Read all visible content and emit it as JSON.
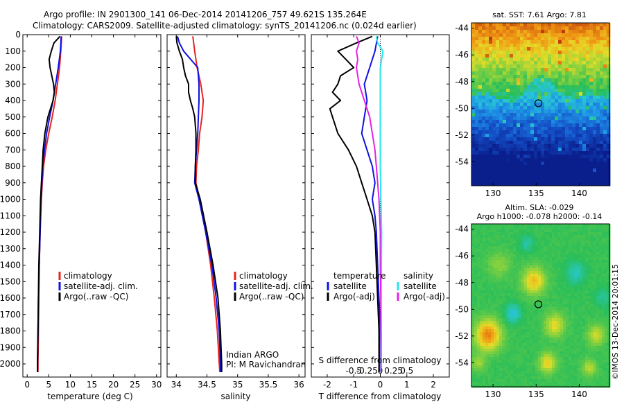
{
  "header": {
    "line1": "Argo profile: IN 2901300_141 06-Dec-2014 20141206_757 49.621S 135.264E",
    "line2": "Climatology: CARS2009. Satellite-adjusted climatology: synTS_20141206.nc (0.024d earlier)"
  },
  "colors": {
    "climatology": "#e8231e",
    "satellite": "#1010e0",
    "argo": "#000000",
    "sat_salinity": "#22e6ee",
    "argo_salinity": "#e620e6"
  },
  "chart_data": [
    {
      "type": "line",
      "id": "temperature",
      "xlabel": "temperature (deg C)",
      "ylabel": "",
      "xlim": [
        -1,
        31
      ],
      "ylim": [
        0,
        2080
      ],
      "xticks": [
        0,
        5,
        10,
        15,
        20,
        25,
        30
      ],
      "yticks": [
        0,
        100,
        200,
        300,
        400,
        500,
        600,
        700,
        800,
        900,
        1000,
        1100,
        1200,
        1300,
        1400,
        1500,
        1600,
        1700,
        1800,
        1900,
        2000
      ],
      "legend": [
        "climatology",
        "satellite-adj. clim.",
        "Argo(..raw -QC)"
      ],
      "series": [
        {
          "name": "climatology",
          "color": "#e8231e",
          "depth": [
            10,
            100,
            200,
            300,
            400,
            500,
            600,
            700,
            800,
            900,
            1000,
            1200,
            1400,
            1600,
            1800,
            2000,
            2050
          ],
          "values": [
            8.0,
            7.8,
            7.5,
            7.0,
            6.5,
            5.8,
            5.0,
            4.3,
            3.8,
            3.5,
            3.3,
            3.0,
            2.8,
            2.7,
            2.6,
            2.5,
            2.5
          ]
        },
        {
          "name": "satellite-adj. clim.",
          "color": "#1010e0",
          "depth": [
            10,
            100,
            200,
            300,
            400,
            500,
            600,
            700,
            800,
            900,
            1000,
            1200,
            1400,
            1600,
            1800,
            2000,
            2050
          ],
          "values": [
            7.9,
            7.7,
            7.2,
            6.6,
            6.0,
            5.2,
            4.5,
            4.0,
            3.6,
            3.4,
            3.2,
            3.0,
            2.8,
            2.6,
            2.5,
            2.4,
            2.4
          ]
        },
        {
          "name": "Argo(..raw -QC)",
          "color": "#000000",
          "depth": [
            10,
            50,
            100,
            150,
            200,
            250,
            300,
            350,
            400,
            450,
            500,
            600,
            700,
            800,
            900,
            1000,
            1200,
            1400,
            1600,
            1800,
            2000,
            2050
          ],
          "values": [
            7.6,
            6.2,
            5.6,
            5.1,
            5.3,
            5.7,
            6.1,
            6.3,
            6.0,
            5.4,
            4.8,
            4.1,
            3.7,
            3.5,
            3.3,
            3.1,
            2.9,
            2.7,
            2.6,
            2.5,
            2.4,
            2.4
          ]
        }
      ]
    },
    {
      "type": "line",
      "id": "salinity",
      "xlabel": "salinity",
      "ylabel": "",
      "xlim": [
        33.85,
        36.1
      ],
      "ylim": [
        0,
        2080
      ],
      "xticks": [
        34,
        34.5,
        35,
        35.5,
        36
      ],
      "legend": [
        "climatology",
        "satellite-adj. clim.",
        "Argo(..raw -QC)"
      ],
      "annotation": [
        "Indian ARGO",
        "PI: M Ravichandran"
      ],
      "series": [
        {
          "name": "climatology",
          "color": "#e8231e",
          "depth": [
            10,
            100,
            200,
            300,
            400,
            500,
            600,
            700,
            800,
            900,
            1000,
            1200,
            1400,
            1600,
            1800,
            2000,
            2050
          ],
          "values": [
            34.27,
            34.3,
            34.34,
            34.4,
            34.44,
            34.42,
            34.38,
            34.36,
            34.33,
            34.32,
            34.38,
            34.48,
            34.56,
            34.62,
            34.67,
            34.7,
            34.71
          ]
        },
        {
          "name": "satellite-adj. clim.",
          "color": "#1010e0",
          "depth": [
            10,
            50,
            100,
            200,
            300,
            400,
            500,
            600,
            700,
            800,
            900,
            1000,
            1200,
            1400,
            1600,
            1800,
            2000,
            2050
          ],
          "values": [
            34.02,
            34.05,
            34.12,
            34.35,
            34.37,
            34.37,
            34.36,
            34.35,
            34.33,
            34.31,
            34.3,
            34.37,
            34.48,
            34.58,
            34.65,
            34.7,
            34.72,
            34.72
          ]
        },
        {
          "name": "Argo(..raw -QC)",
          "color": "#000000",
          "depth": [
            10,
            50,
            100,
            150,
            200,
            250,
            300,
            350,
            400,
            450,
            500,
            600,
            700,
            800,
            900,
            1000,
            1200,
            1400,
            1600,
            1800,
            2000,
            2050
          ],
          "values": [
            34.0,
            34.01,
            34.05,
            34.1,
            34.12,
            34.15,
            34.2,
            34.2,
            34.23,
            34.27,
            34.3,
            34.32,
            34.32,
            34.31,
            34.31,
            34.39,
            34.5,
            34.6,
            34.68,
            34.72,
            34.74,
            34.74
          ]
        }
      ]
    },
    {
      "type": "line",
      "id": "difference",
      "xlabel": "T difference from climatology",
      "xlabel_top": "S difference from climatology",
      "xlim": [
        -2.6,
        2.6
      ],
      "ylim": [
        0,
        2080
      ],
      "xticks_T": [
        -2,
        -1,
        0,
        1,
        2
      ],
      "xticks_S": [
        -0.5,
        -0.25,
        0,
        0.25,
        0.5
      ],
      "legend_temperature": [
        "temperature",
        "satellite",
        "Argo(-adj)"
      ],
      "legend_salinity": [
        "salinity",
        "satellite",
        "Argo(-adj)"
      ],
      "series": [
        {
          "name": "satellite",
          "color": "#1010e0",
          "depth": [
            10,
            100,
            200,
            300,
            400,
            500,
            600,
            700,
            800,
            900,
            1000,
            1100,
            1200,
            1400,
            1600,
            1800,
            2000,
            2050
          ],
          "values": [
            -0.1,
            -0.2,
            -0.4,
            -0.6,
            -0.5,
            -0.6,
            -0.7,
            -0.5,
            -0.3,
            -0.2,
            -0.3,
            -0.2,
            -0.15,
            -0.1,
            -0.05,
            0,
            0,
            0
          ]
        },
        {
          "name": "Argo(-adj)",
          "color": "#000000",
          "depth": [
            10,
            50,
            100,
            150,
            200,
            250,
            300,
            350,
            400,
            450,
            500,
            600,
            700,
            800,
            900,
            1000,
            1100,
            1200,
            1400,
            1600,
            1800,
            2000,
            2050
          ],
          "values": [
            -0.3,
            -0.9,
            -1.6,
            -1.3,
            -1.0,
            -1.5,
            -1.6,
            -1.8,
            -1.5,
            -1.9,
            -1.8,
            -1.6,
            -1.2,
            -0.9,
            -0.7,
            -0.5,
            -0.3,
            -0.2,
            -0.15,
            -0.1,
            -0.05,
            -0.05,
            -0.05
          ]
        },
        {
          "name": "satellite",
          "color": "#22e6ee",
          "depth": [
            10,
            50,
            100,
            150,
            200,
            300,
            400,
            600,
            800,
            1000,
            1200,
            1400,
            1600,
            1800,
            2000,
            2050
          ],
          "values": [
            -0.15,
            -0.1,
            0.1,
            0.05,
            0.0,
            0.0,
            0.0,
            0.0,
            0.0,
            0.02,
            0.05,
            0.04,
            0.03,
            0.02,
            0.01,
            0.01
          ]
        },
        {
          "name": "Argo(-adj)",
          "color": "#e620e6",
          "depth": [
            10,
            50,
            100,
            150,
            200,
            300,
            400,
            500,
            600,
            700,
            800,
            900,
            1000,
            1200,
            1400,
            1600,
            1800,
            2000,
            2050
          ],
          "values": [
            -0.9,
            -0.8,
            -0.9,
            -0.85,
            -0.9,
            -0.8,
            -0.6,
            -0.4,
            -0.3,
            -0.2,
            -0.15,
            -0.1,
            -0.05,
            0.0,
            0.0,
            0.02,
            0.03,
            0.03,
            0.03
          ]
        }
      ]
    },
    {
      "type": "heatmap",
      "id": "sst-map",
      "title": "sat. SST: 7.61  Argo: 7.81",
      "xlim": [
        127.5,
        143.5
      ],
      "ylim": [
        -55.8,
        -43.6
      ],
      "xticks": [
        130,
        135,
        140
      ],
      "yticks": [
        -44,
        -46,
        -48,
        -50,
        -52,
        -54
      ],
      "marker": {
        "lon": 135.264,
        "lat": -49.621
      }
    },
    {
      "type": "heatmap",
      "id": "sla-map",
      "title_line1": "Altim. SLA: -0.029",
      "title_line2": "Argo h1000: -0.078 h2000: -0.14",
      "xlim": [
        127.5,
        143.5
      ],
      "ylim": [
        -55.8,
        -43.6
      ],
      "xticks": [
        130,
        135,
        140
      ],
      "yticks": [
        -44,
        -46,
        -48,
        -50,
        -52,
        -54
      ],
      "marker": {
        "lon": 135.264,
        "lat": -49.621
      }
    }
  ],
  "credit": "©IMOS 13-Dec-2014 20:01:15"
}
